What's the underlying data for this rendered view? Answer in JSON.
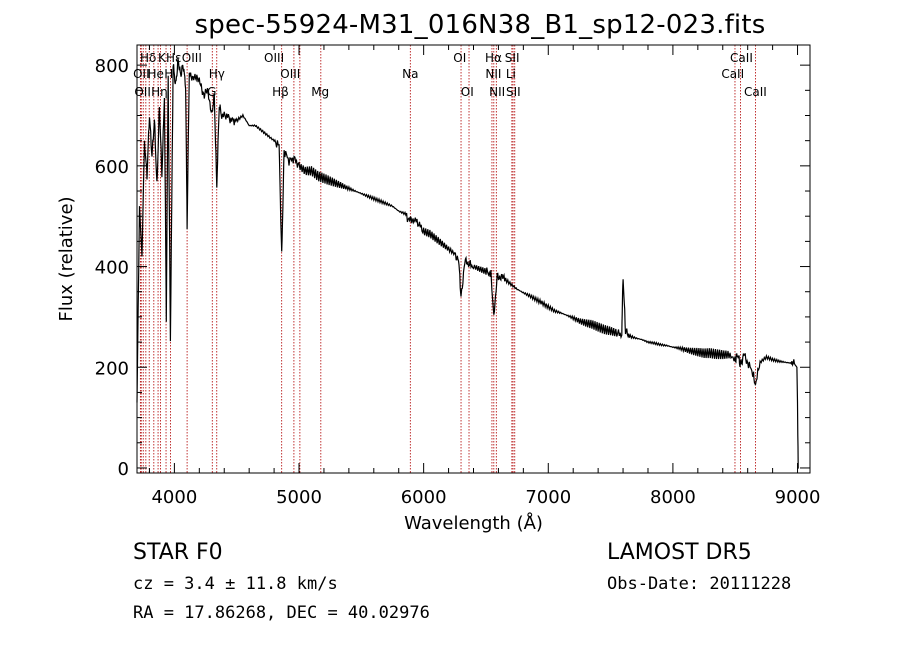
{
  "chart_data": {
    "type": "line",
    "title": "spec-55924-M31_016N38_B1_sp12-023.fits",
    "xlabel": "Wavelength (Å)",
    "ylabel": "Flux (relative)",
    "xlim": [
      3700,
      9100
    ],
    "ylim": [
      -10,
      840
    ],
    "xticks": [
      4000,
      5000,
      6000,
      7000,
      8000,
      9000
    ],
    "yticks": [
      0,
      200,
      400,
      600,
      800
    ],
    "grid": false,
    "colors": {
      "spectrum": "#000000",
      "lines": "#b00000"
    },
    "spectrum": {
      "x": [
        3700,
        3720,
        3740,
        3760,
        3780,
        3800,
        3820,
        3840,
        3860,
        3880,
        3900,
        3920,
        3935,
        3950,
        3968,
        3990,
        4010,
        4030,
        4050,
        4070,
        4090,
        4102,
        4120,
        4150,
        4180,
        4210,
        4240,
        4270,
        4300,
        4320,
        4340,
        4360,
        4380,
        4420,
        4460,
        4500,
        4550,
        4600,
        4650,
        4700,
        4750,
        4800,
        4840,
        4861,
        4880,
        4920,
        4960,
        5000,
        5050,
        5100,
        5150,
        5200,
        5250,
        5300,
        5350,
        5400,
        5450,
        5500,
        5550,
        5600,
        5650,
        5700,
        5750,
        5800,
        5850,
        5890,
        5920,
        5960,
        6000,
        6050,
        6100,
        6150,
        6200,
        6250,
        6280,
        6300,
        6330,
        6360,
        6400,
        6450,
        6500,
        6540,
        6563,
        6590,
        6620,
        6650,
        6700,
        6750,
        6800,
        6850,
        6900,
        6950,
        7000,
        7050,
        7100,
        7150,
        7200,
        7250,
        7300,
        7350,
        7400,
        7450,
        7500,
        7550,
        7590,
        7600,
        7620,
        7650,
        7700,
        7750,
        7800,
        7850,
        7900,
        7950,
        8000,
        8050,
        8100,
        8150,
        8200,
        8250,
        8300,
        8350,
        8400,
        8450,
        8498,
        8520,
        8542,
        8570,
        8600,
        8640,
        8662,
        8700,
        8750,
        8800,
        8850,
        8900,
        8950,
        8980,
        8995,
        9000,
        9005,
        9010
      ],
      "y": [
        130,
        520,
        420,
        650,
        580,
        700,
        620,
        690,
        560,
        720,
        580,
        740,
        300,
        780,
        260,
        800,
        760,
        810,
        780,
        800,
        760,
        480,
        790,
        770,
        780,
        760,
        740,
        750,
        700,
        740,
        560,
        720,
        700,
        700,
        690,
        690,
        700,
        680,
        680,
        670,
        660,
        650,
        640,
        420,
        630,
        610,
        615,
        600,
        590,
        590,
        580,
        575,
        570,
        565,
        560,
        555,
        550,
        545,
        540,
        535,
        530,
        525,
        520,
        510,
        505,
        490,
        495,
        485,
        470,
        465,
        455,
        445,
        435,
        425,
        415,
        340,
        410,
        405,
        400,
        395,
        390,
        385,
        300,
        380,
        380,
        375,
        365,
        355,
        348,
        342,
        335,
        328,
        320,
        312,
        308,
        303,
        298,
        292,
        288,
        285,
        280,
        275,
        272,
        268,
        265,
        380,
        270,
        262,
        258,
        255,
        250,
        248,
        245,
        243,
        240,
        238,
        235,
        232,
        230,
        228,
        228,
        226,
        225,
        225,
        215,
        225,
        205,
        225,
        210,
        190,
        165,
        210,
        220,
        215,
        212,
        210,
        208,
        205,
        200,
        130,
        0,
        0
      ]
    },
    "line_labels": [
      {
        "label": "Hδ",
        "x": 3790,
        "row": 0
      },
      {
        "label": "K",
        "x": 3900,
        "row": 0
      },
      {
        "label": "Hε",
        "x": 3995,
        "row": 0
      },
      {
        "label": "OIII",
        "x": 4140,
        "row": 0
      },
      {
        "label": "OIII",
        "x": 4800,
        "row": 0
      },
      {
        "label": "OI",
        "x": 6290,
        "row": 0
      },
      {
        "label": "Hα",
        "x": 6560,
        "row": 0
      },
      {
        "label": "SII",
        "x": 6710,
        "row": 0
      },
      {
        "label": "CaII",
        "x": 8550,
        "row": 0
      },
      {
        "label": "OII",
        "x": 3735,
        "row": 1
      },
      {
        "label": "He",
        "x": 3850,
        "row": 1
      },
      {
        "label": "H",
        "x": 3955,
        "row": 1
      },
      {
        "label": "Hγ",
        "x": 4340,
        "row": 1
      },
      {
        "label": "OIII",
        "x": 4930,
        "row": 1
      },
      {
        "label": "NII",
        "x": 6560,
        "row": 1
      },
      {
        "label": "Li",
        "x": 6700,
        "row": 1
      },
      {
        "label": "CaII",
        "x": 8480,
        "row": 1
      },
      {
        "label": "OII",
        "x": 3745,
        "row": 2
      },
      {
        "label": "Hη",
        "x": 3880,
        "row": 2
      },
      {
        "label": "G",
        "x": 4300,
        "row": 2
      },
      {
        "label": "Hβ",
        "x": 4851,
        "row": 2
      },
      {
        "label": "Mg",
        "x": 5170,
        "row": 2
      },
      {
        "label": "Na",
        "x": 5893,
        "row": 1
      },
      {
        "label": "OI",
        "x": 6350,
        "row": 2
      },
      {
        "label": "NII",
        "x": 6590,
        "row": 2
      },
      {
        "label": "SII",
        "x": 6720,
        "row": 2
      },
      {
        "label": "CaII",
        "x": 8662,
        "row": 2
      }
    ],
    "line_wavelengths": [
      3727,
      3734,
      3750,
      3771,
      3798,
      3835,
      3869,
      3889,
      3933,
      3968,
      4102,
      4304,
      4340,
      4861,
      4959,
      5007,
      5175,
      5893,
      6300,
      6364,
      6548,
      6563,
      6583,
      6708,
      6717,
      6731,
      8498,
      8542,
      8662
    ]
  },
  "info": {
    "object_class": "STAR    F0",
    "cz": "cz = 3.4 ± 11.8 km/s",
    "radec": "RA =  17.86268, DEC =  40.02976",
    "survey": "LAMOST  DR5",
    "obs_date": "Obs-Date: 20111228"
  }
}
